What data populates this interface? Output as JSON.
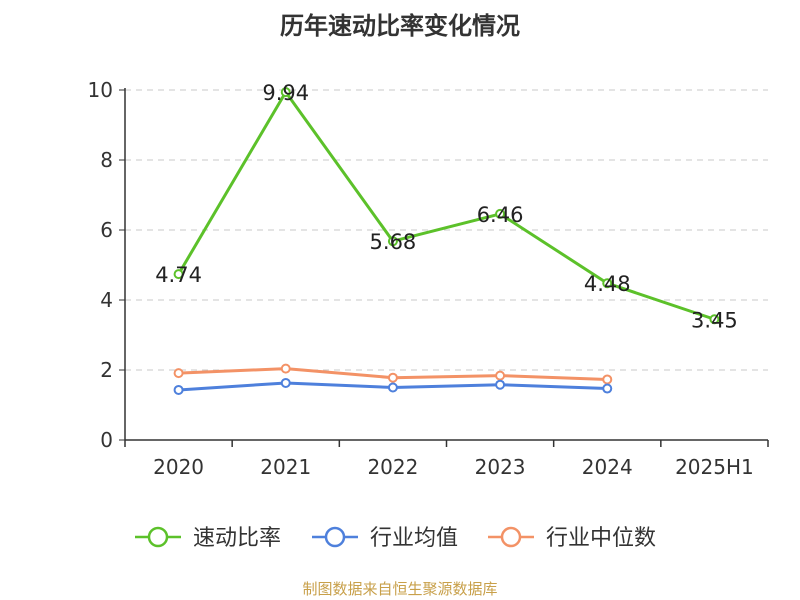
{
  "chart_data": {
    "type": "line",
    "title": "历年速动比率变化情况",
    "categories": [
      "2020",
      "2021",
      "2022",
      "2023",
      "2024",
      "2025H1"
    ],
    "ylim": [
      0,
      10
    ],
    "yticks": [
      0,
      2,
      4,
      6,
      8,
      10
    ],
    "grid": true,
    "legend_position": "bottom",
    "series": [
      {
        "name": "速动比率",
        "color": "#5cc12a",
        "values": [
          4.74,
          9.94,
          5.68,
          6.46,
          4.48,
          3.45
        ],
        "labels": [
          "4.74",
          "9.94",
          "5.68",
          "6.46",
          "4.48",
          "3.45"
        ]
      },
      {
        "name": "行业均值",
        "color": "#4e80dc",
        "values": [
          1.43,
          1.63,
          1.5,
          1.58,
          1.47,
          null
        ]
      },
      {
        "name": "行业中位数",
        "color": "#f39266",
        "values": [
          1.91,
          2.04,
          1.78,
          1.84,
          1.73,
          null
        ]
      }
    ]
  },
  "source": "制图数据来自恒生聚源数据库"
}
